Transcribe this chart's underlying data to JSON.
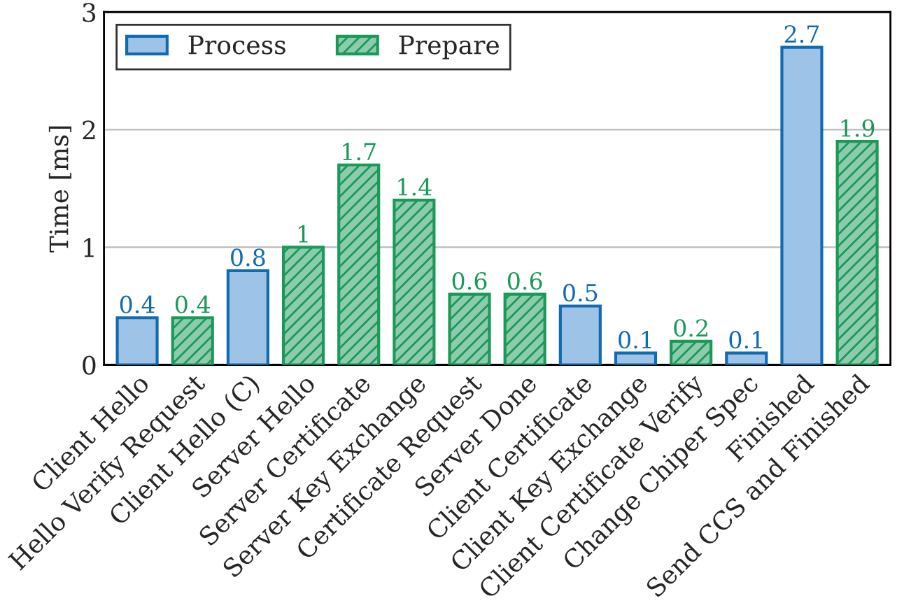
{
  "chart_data": {
    "type": "bar",
    "ylabel": "Time [ms]",
    "categories": [
      "Client Hello",
      "Hello Verify Request",
      "Client Hello (C)",
      "Server Hello",
      "Server Certificate",
      "Server Key Exchange",
      "Certificate Request",
      "Server Done",
      "Client Certificate",
      "Client Key Exchange",
      "Client Certificate Verify",
      "Change Chiper Spec",
      "Finished",
      "Send CCS and Finished"
    ],
    "series": [
      {
        "name": "Process",
        "color": "#9dc3e6",
        "values": [
          0.4,
          null,
          0.8,
          null,
          null,
          null,
          null,
          null,
          0.5,
          0.1,
          null,
          0.1,
          2.7,
          null
        ]
      },
      {
        "name": "Prepare",
        "color": "#1a9959",
        "values": [
          null,
          0.4,
          null,
          1,
          1.7,
          1.4,
          0.6,
          0.6,
          null,
          null,
          0.2,
          null,
          null,
          1.9
        ]
      }
    ],
    "ylim": [
      0,
      3
    ],
    "yticks": [
      0,
      1,
      2,
      3
    ],
    "grid": "y",
    "legend": "top left",
    "data_labels": true
  }
}
